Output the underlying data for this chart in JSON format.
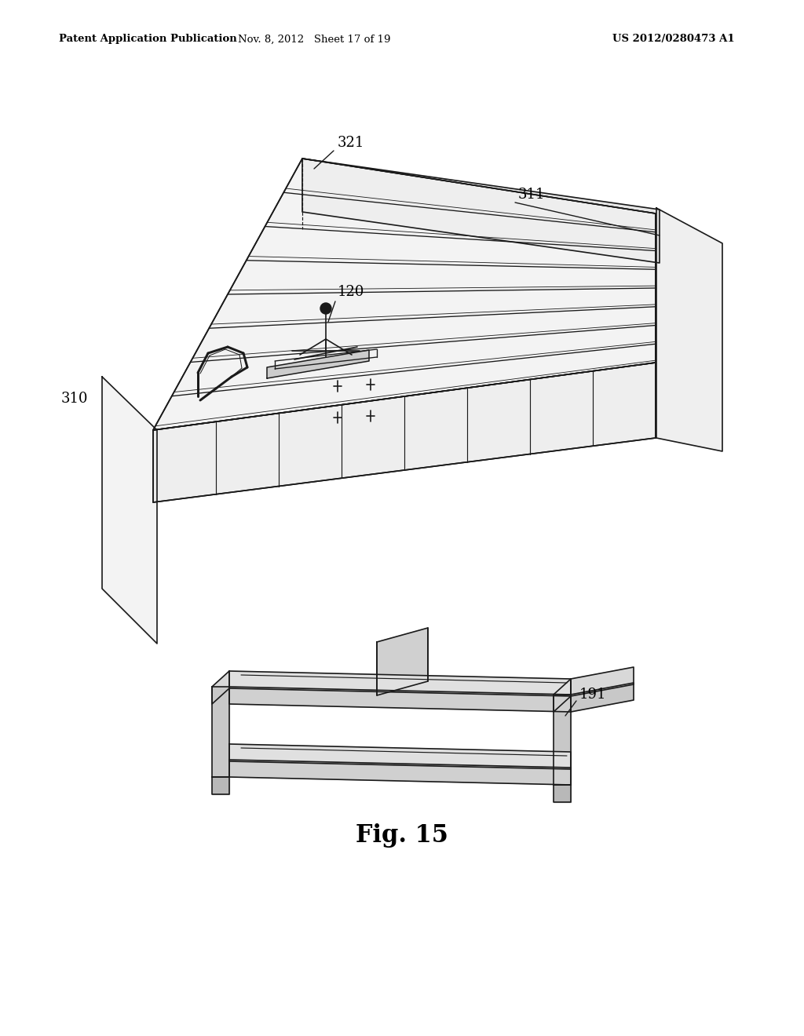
{
  "header_left": "Patent Application Publication",
  "header_center": "Nov. 8, 2012   Sheet 17 of 19",
  "header_right": "US 2012/0280473 A1",
  "figure_label": "Fig. 15",
  "background_color": "#ffffff",
  "line_color": "#1a1a1a",
  "label_311": "311",
  "label_321": "321",
  "label_120": "120",
  "label_310": "310",
  "label_191": "191"
}
